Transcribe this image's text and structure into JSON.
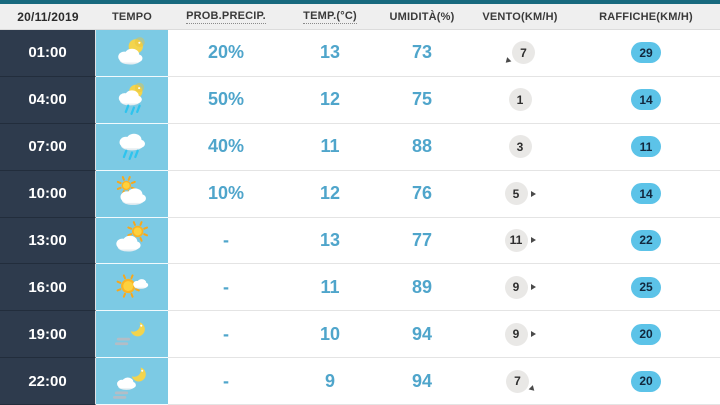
{
  "header": {
    "date": "20/11/2019",
    "columns": [
      "TEMPO",
      "PROB.PRECIP.",
      "TEMP.(°C)",
      "UMIDITÀ(%)",
      "VENTO(KM/H)",
      "RAFFICHE(KM/H)"
    ]
  },
  "rows": [
    {
      "time": "01:00",
      "icon": "moon-cloud",
      "prob": "20%",
      "temp": "13",
      "humidity": "73",
      "wind": "7",
      "wind_dir": "sw",
      "gust": "29"
    },
    {
      "time": "04:00",
      "icon": "moon-cloud-rain",
      "prob": "50%",
      "temp": "12",
      "humidity": "75",
      "wind": "1",
      "wind_dir": null,
      "gust": "14"
    },
    {
      "time": "07:00",
      "icon": "cloud-rain",
      "prob": "40%",
      "temp": "11",
      "humidity": "88",
      "wind": "3",
      "wind_dir": null,
      "gust": "11"
    },
    {
      "time": "10:00",
      "icon": "sun-cloud",
      "prob": "10%",
      "temp": "12",
      "humidity": "76",
      "wind": "5",
      "wind_dir": "e",
      "gust": "14"
    },
    {
      "time": "13:00",
      "icon": "cloud-sun",
      "prob": "-",
      "temp": "13",
      "humidity": "77",
      "wind": "11",
      "wind_dir": "e",
      "gust": "22"
    },
    {
      "time": "16:00",
      "icon": "sun-small-cloud",
      "prob": "-",
      "temp": "11",
      "humidity": "89",
      "wind": "9",
      "wind_dir": "e",
      "gust": "25"
    },
    {
      "time": "19:00",
      "icon": "moon-fog",
      "prob": "-",
      "temp": "10",
      "humidity": "94",
      "wind": "9",
      "wind_dir": "e",
      "gust": "20"
    },
    {
      "time": "22:00",
      "icon": "moon-cloud-fog",
      "prob": "-",
      "temp": "9",
      "humidity": "94",
      "wind": "7",
      "wind_dir": "se",
      "gust": "20"
    }
  ],
  "colors": {
    "accent_bar": "#17697e",
    "time_column": "#2e3b4d",
    "icon_column": "#7ccae4",
    "value_text": "#4fa5cb",
    "gust_badge": "#5cc3e8",
    "wind_badge": "#e9e8e6",
    "header_bg": "#efefef"
  },
  "chart_data": {
    "type": "table",
    "columns": [
      "20/11/2019",
      "TEMPO",
      "PROB.PRECIP.",
      "TEMP.(°C)",
      "UMIDITÀ(%)",
      "VENTO(KM/H)",
      "RAFFICHE(KM/H)"
    ],
    "rows": [
      [
        "01:00",
        "moon-cloud",
        "20%",
        13,
        73,
        7,
        29
      ],
      [
        "04:00",
        "moon-cloud-rain",
        "50%",
        12,
        75,
        1,
        14
      ],
      [
        "07:00",
        "cloud-rain",
        "40%",
        11,
        88,
        3,
        11
      ],
      [
        "10:00",
        "sun-cloud",
        "10%",
        12,
        76,
        5,
        14
      ],
      [
        "13:00",
        "cloud-sun",
        "-",
        13,
        77,
        11,
        22
      ],
      [
        "16:00",
        "sun",
        "-",
        11,
        89,
        9,
        25
      ],
      [
        "19:00",
        "moon-fog",
        "-",
        10,
        94,
        9,
        20
      ],
      [
        "22:00",
        "moon-cloud-fog",
        "-",
        9,
        94,
        7,
        20
      ]
    ],
    "notes": "wind direction arrows visible on rows 01:00 (sw), 10:00/13:00/16:00/19:00 (e), 22:00 (se)"
  }
}
